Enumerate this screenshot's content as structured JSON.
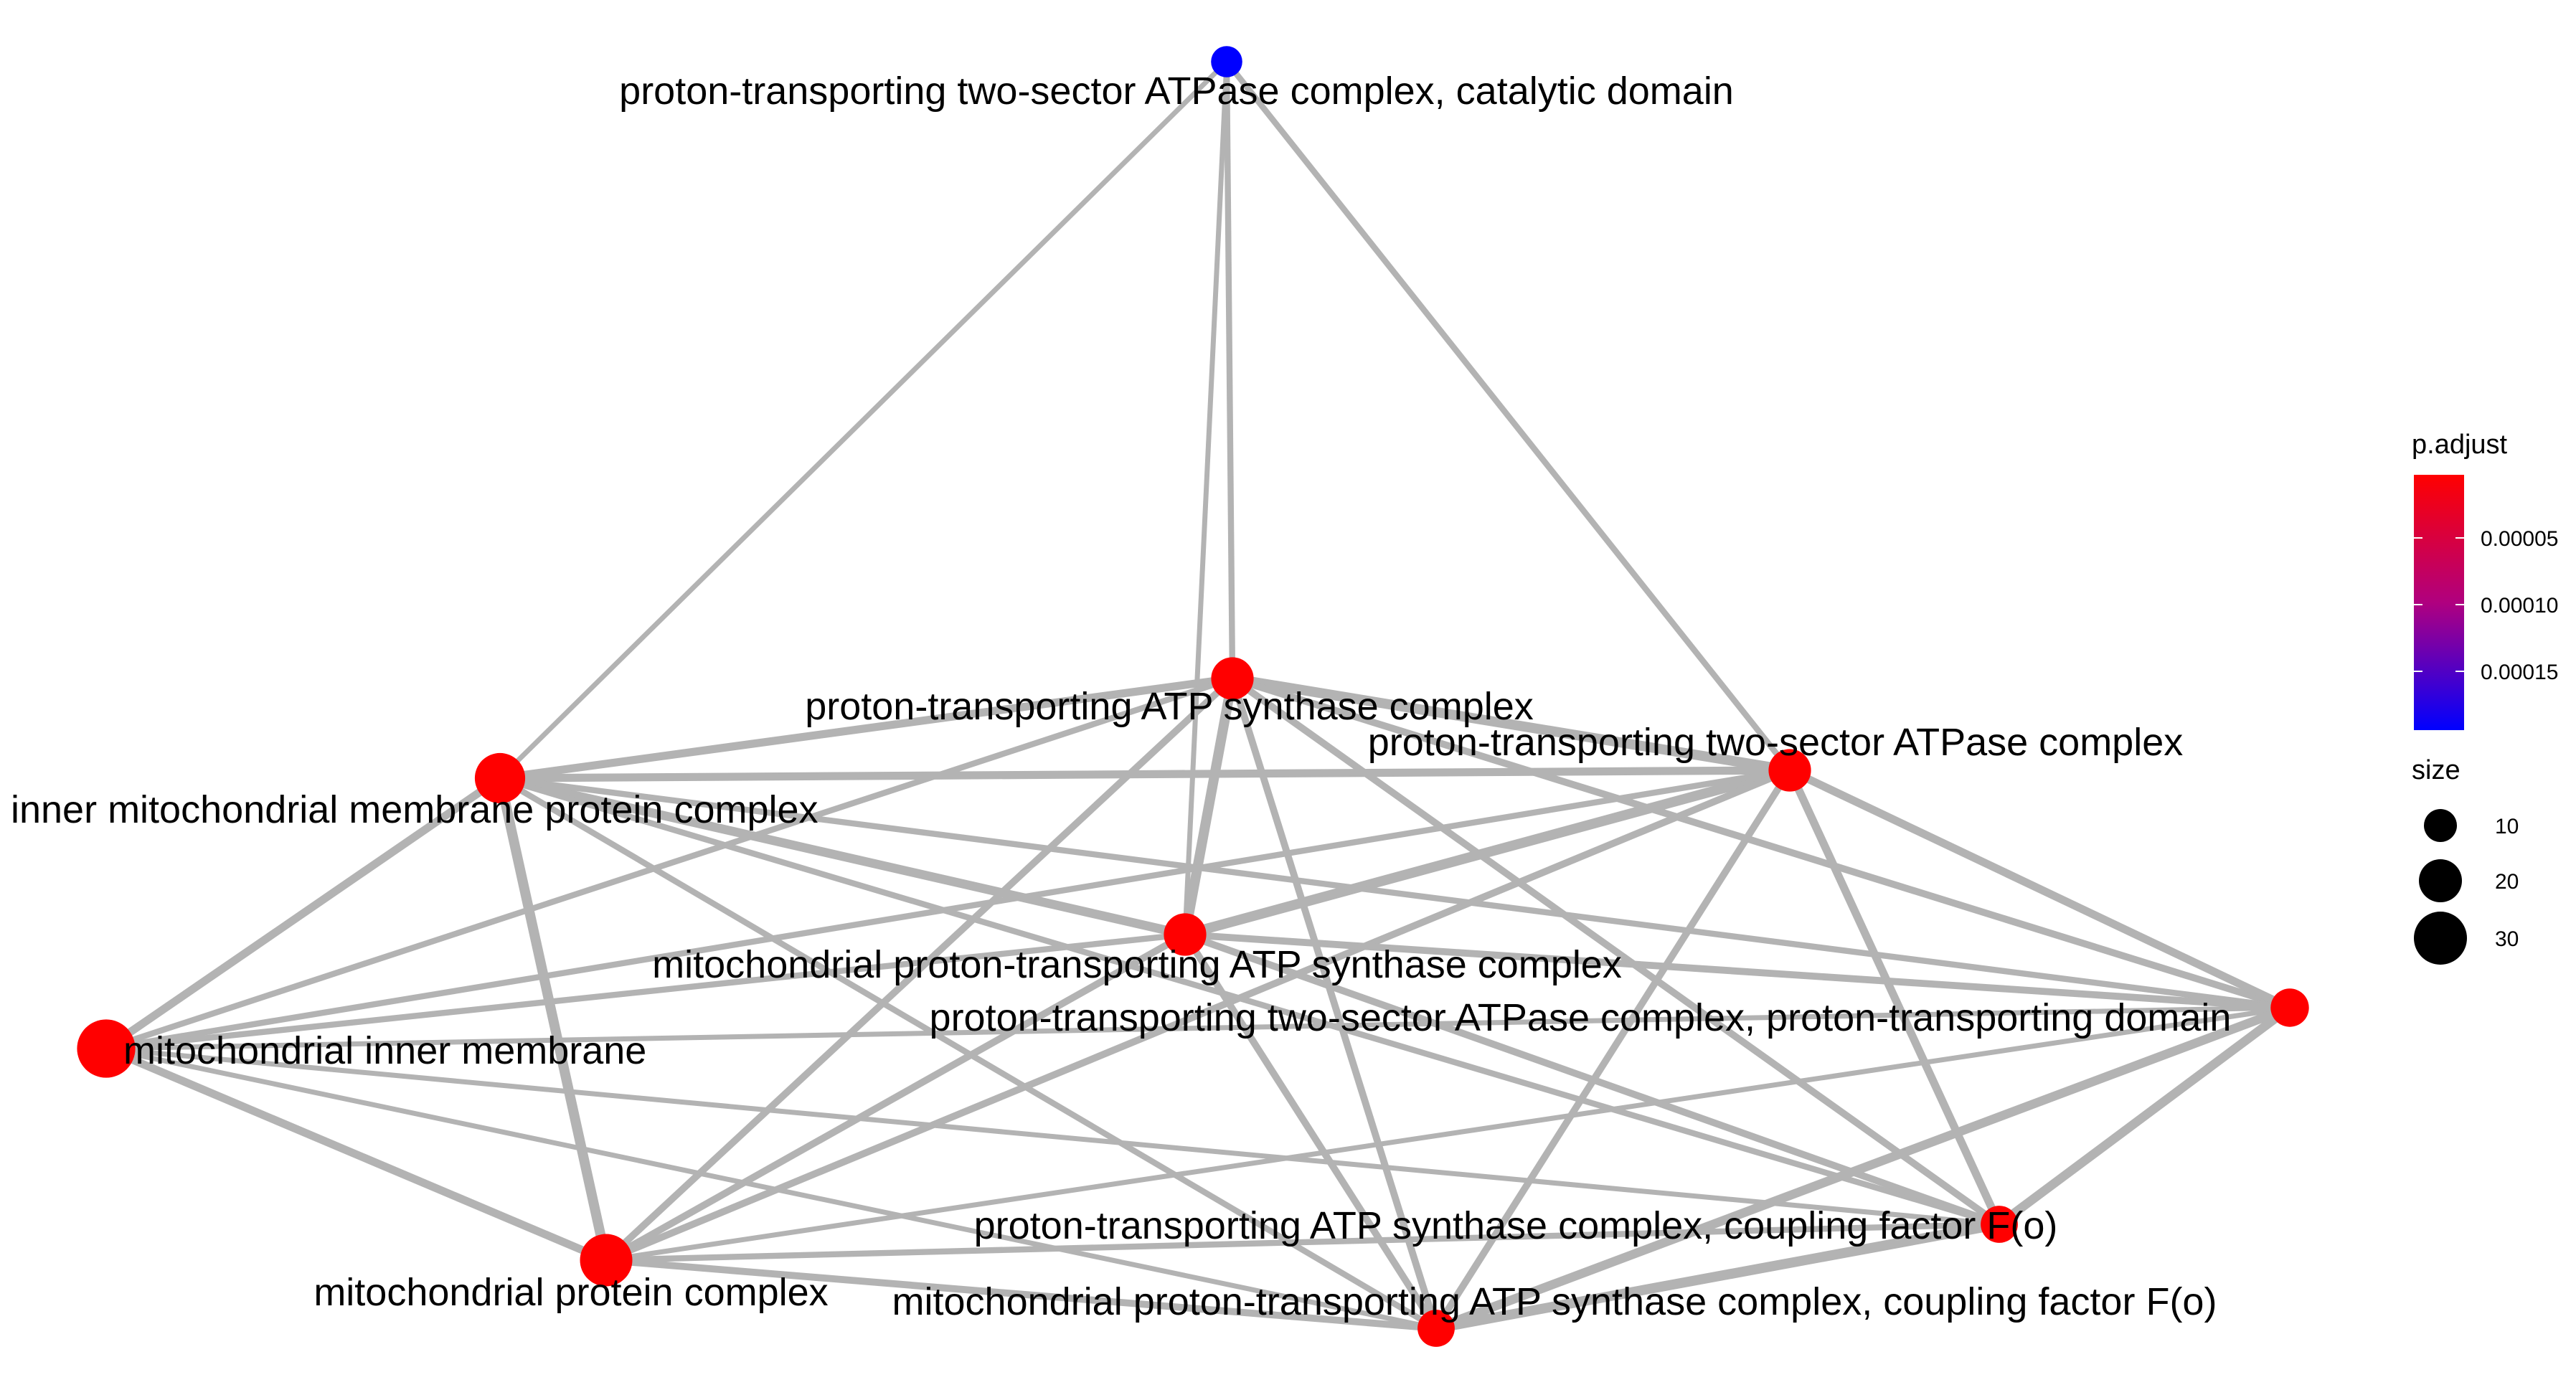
{
  "chart_data": {
    "type": "network",
    "nodes": [
      {
        "id": "catalytic",
        "label": "proton-transporting two-sector ATPase complex, catalytic domain",
        "color": "#0000FF",
        "size": 3
      },
      {
        "id": "atp_synthase",
        "label": "proton-transporting ATP synthase complex",
        "color": "#FF0000",
        "size": 12
      },
      {
        "id": "two_sector",
        "label": "proton-transporting two-sector ATPase complex",
        "color": "#FF0000",
        "size": 12
      },
      {
        "id": "inner_mito_complex",
        "label": "inner mitochondrial membrane protein complex",
        "color": "#FF0000",
        "size": 22
      },
      {
        "id": "mito_atp_synthase",
        "label": "mitochondrial proton-transporting ATP synthase complex",
        "color": "#FF0000",
        "size": 12
      },
      {
        "id": "proton_domain",
        "label": "proton-transporting two-sector ATPase complex, proton-transporting domain",
        "color": "#FF0000",
        "size": 8
      },
      {
        "id": "mito_inner_membrane",
        "label": "mitochondrial inner membrane",
        "color": "#FF0000",
        "size": 35
      },
      {
        "id": "coupling_fo",
        "label": "proton-transporting ATP synthase complex, coupling factor F(o)",
        "color": "#FF0000",
        "size": 7
      },
      {
        "id": "mito_protein_complex",
        "label": "mitochondrial protein complex",
        "color": "#FF0000",
        "size": 25
      },
      {
        "id": "mito_coupling_fo",
        "label": "mitochondrial proton-transporting ATP synthase complex, coupling factor F(o)",
        "color": "#FF0000",
        "size": 7
      }
    ],
    "edges": [
      [
        "catalytic",
        "atp_synthase",
        1.2
      ],
      [
        "catalytic",
        "two_sector",
        1.2
      ],
      [
        "catalytic",
        "inner_mito_complex",
        1.0
      ],
      [
        "catalytic",
        "mito_atp_synthase",
        1.0
      ],
      [
        "atp_synthase",
        "two_sector",
        2.0
      ],
      [
        "atp_synthase",
        "inner_mito_complex",
        1.6
      ],
      [
        "atp_synthase",
        "mito_atp_synthase",
        2.0
      ],
      [
        "atp_synthase",
        "proton_domain",
        1.4
      ],
      [
        "atp_synthase",
        "mito_inner_membrane",
        1.2
      ],
      [
        "atp_synthase",
        "coupling_fo",
        1.4
      ],
      [
        "atp_synthase",
        "mito_protein_complex",
        1.4
      ],
      [
        "atp_synthase",
        "mito_coupling_fo",
        1.4
      ],
      [
        "two_sector",
        "inner_mito_complex",
        1.6
      ],
      [
        "two_sector",
        "mito_atp_synthase",
        2.0
      ],
      [
        "two_sector",
        "proton_domain",
        1.6
      ],
      [
        "two_sector",
        "mito_inner_membrane",
        1.2
      ],
      [
        "two_sector",
        "coupling_fo",
        1.6
      ],
      [
        "two_sector",
        "mito_protein_complex",
        1.4
      ],
      [
        "two_sector",
        "mito_coupling_fo",
        1.4
      ],
      [
        "inner_mito_complex",
        "mito_atp_synthase",
        1.8
      ],
      [
        "inner_mito_complex",
        "proton_domain",
        1.2
      ],
      [
        "inner_mito_complex",
        "mito_inner_membrane",
        1.6
      ],
      [
        "inner_mito_complex",
        "coupling_fo",
        1.2
      ],
      [
        "inner_mito_complex",
        "mito_protein_complex",
        2.0
      ],
      [
        "inner_mito_complex",
        "mito_coupling_fo",
        1.2
      ],
      [
        "mito_atp_synthase",
        "proton_domain",
        1.4
      ],
      [
        "mito_atp_synthase",
        "mito_inner_membrane",
        1.2
      ],
      [
        "mito_atp_synthase",
        "coupling_fo",
        1.4
      ],
      [
        "mito_atp_synthase",
        "mito_protein_complex",
        1.4
      ],
      [
        "mito_atp_synthase",
        "mito_coupling_fo",
        1.4
      ],
      [
        "proton_domain",
        "mito_inner_membrane",
        1.0
      ],
      [
        "proton_domain",
        "coupling_fo",
        1.8
      ],
      [
        "proton_domain",
        "mito_protein_complex",
        1.0
      ],
      [
        "proton_domain",
        "mito_coupling_fo",
        1.8
      ],
      [
        "mito_inner_membrane",
        "coupling_fo",
        1.0
      ],
      [
        "mito_inner_membrane",
        "mito_protein_complex",
        1.6
      ],
      [
        "mito_inner_membrane",
        "mito_coupling_fo",
        1.0
      ],
      [
        "coupling_fo",
        "mito_protein_complex",
        1.2
      ],
      [
        "coupling_fo",
        "mito_coupling_fo",
        2.0
      ],
      [
        "mito_protein_complex",
        "mito_coupling_fo",
        1.4
      ]
    ],
    "legend": {
      "color_title": "p.adjust",
      "color_ticks": [
        "0.00005",
        "0.00010",
        "0.00015"
      ],
      "color_low": "#FF0000",
      "color_high": "#0000FF",
      "size_title": "size",
      "size_ticks": [
        "10",
        "20",
        "30"
      ]
    }
  }
}
